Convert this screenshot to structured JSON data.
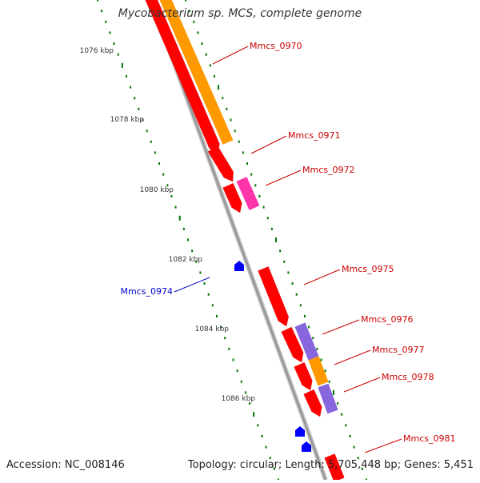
{
  "title": "Mycobacterium sp. MCS, complete genome",
  "accession": "Accession: NC_008146",
  "topology_info": "Topology: circular; Length: 5,705,448 bp; Genes: 5,451",
  "colors": {
    "backbone": "#999999",
    "tick": "#007700",
    "forward_gene_label": "#cc0000",
    "reverse_gene_label": "#0000cc",
    "cds_red": "#ff0000",
    "cds_orange": "#ff9900",
    "cds_pink": "#ff33aa",
    "cds_purple": "#8866dd",
    "cds_blue": "#0000ff"
  },
  "scale_labels": [
    "1076 kbp",
    "1078 kbp",
    "1080 kbp",
    "1082 kbp",
    "1084 kbp",
    "1086 kbp"
  ],
  "gene_labels": [
    {
      "name": "Mmcs_0970",
      "strand": "forward"
    },
    {
      "name": "Mmcs_0971",
      "strand": "forward"
    },
    {
      "name": "Mmcs_0972",
      "strand": "forward"
    },
    {
      "name": "Mmcs_0974",
      "strand": "reverse"
    },
    {
      "name": "Mmcs_0975",
      "strand": "forward"
    },
    {
      "name": "Mmcs_0976",
      "strand": "forward"
    },
    {
      "name": "Mmcs_0977",
      "strand": "forward"
    },
    {
      "name": "Mmcs_0978",
      "strand": "forward"
    },
    {
      "name": "Mmcs_0981",
      "strand": "forward"
    }
  ]
}
